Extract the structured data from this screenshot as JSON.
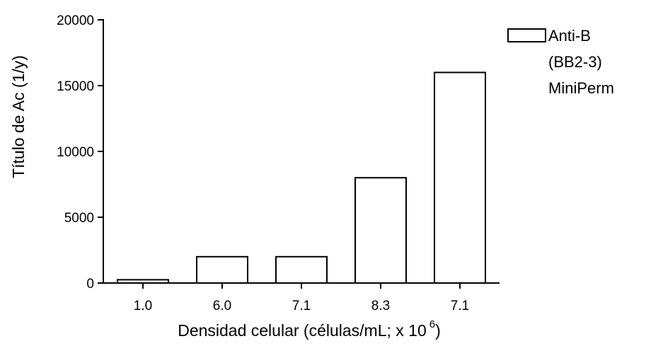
{
  "chart_data": {
    "type": "bar",
    "categories": [
      "1.0",
      "6.0",
      "7.1",
      "8.3",
      "7.1"
    ],
    "series": [
      {
        "name": "Anti-B (BB2-3) MiniPerm",
        "values": [
          250,
          2000,
          2000,
          8000,
          16000
        ]
      }
    ],
    "xlabel": "Densidad celular (células/mL; x 10",
    "xlabel_superscript": "6",
    "xlabel_close": ")",
    "ylabel": "Título de Ac (1/y)",
    "ylim": [
      0,
      20000
    ],
    "yticks": [
      "0",
      "5000",
      "10000",
      "15000",
      "20000"
    ],
    "grid": false,
    "legend": {
      "position": "top-right",
      "lines": [
        "Anti-B",
        "(BB2-3)",
        "MiniPerm"
      ]
    },
    "colors": {
      "bar_fill": "#ffffff",
      "bar_stroke": "#000000",
      "axis": "#000000"
    }
  }
}
